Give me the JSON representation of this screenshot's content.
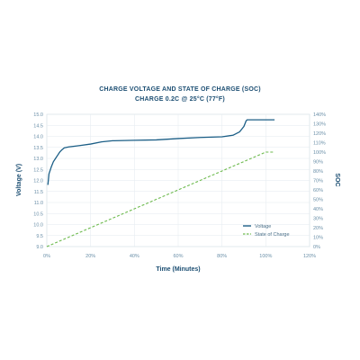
{
  "chart_data": {
    "type": "line",
    "title": "CHARGE VOLTAGE AND STATE OF CHARGE (SOC)",
    "subtitle": "CHARGE 0.2C @ 25°C (77°F)",
    "xlabel": "Time (Minutes)",
    "ylabel": "Voltage (V)",
    "y2label": "SOC",
    "xlim": [
      0,
      120
    ],
    "ylim": [
      9.0,
      15.0
    ],
    "y2lim": [
      0,
      140
    ],
    "x_ticks": [
      "0%",
      "20%",
      "40%",
      "60%",
      "80%",
      "100%",
      "120%"
    ],
    "y_ticks": [
      "9.0",
      "9.5",
      "10.0",
      "10.5",
      "11.0",
      "11.5",
      "12.0",
      "12.5",
      "13.0",
      "13.5",
      "14.0",
      "14.5",
      "15.0"
    ],
    "y2_ticks": [
      "0%",
      "10%",
      "20%",
      "30%",
      "40%",
      "50%",
      "60%",
      "70%",
      "80%",
      "90%",
      "100%",
      "110%",
      "120%",
      "130%",
      "140%"
    ],
    "grid": true,
    "legend_position": "bottom-right",
    "series": [
      {
        "name": "Voltage",
        "axis": "left",
        "color": "#1b5e86",
        "x": [
          0.5,
          1,
          2,
          3,
          4,
          5,
          6,
          7,
          8,
          10,
          15,
          20,
          25,
          30,
          40,
          50,
          60,
          70,
          80,
          85,
          88,
          90,
          91,
          91.5,
          100,
          104
        ],
        "y": [
          11.8,
          12.3,
          12.6,
          12.85,
          13.0,
          13.15,
          13.3,
          13.4,
          13.48,
          13.52,
          13.58,
          13.65,
          13.75,
          13.8,
          13.82,
          13.84,
          13.9,
          13.95,
          13.98,
          14.05,
          14.2,
          14.45,
          14.7,
          14.75,
          14.75,
          14.75
        ]
      },
      {
        "name": "State of Charge",
        "axis": "right",
        "color": "#6dba4e",
        "dashed": true,
        "x": [
          0,
          100,
          104
        ],
        "y": [
          0,
          100,
          100
        ]
      }
    ]
  }
}
